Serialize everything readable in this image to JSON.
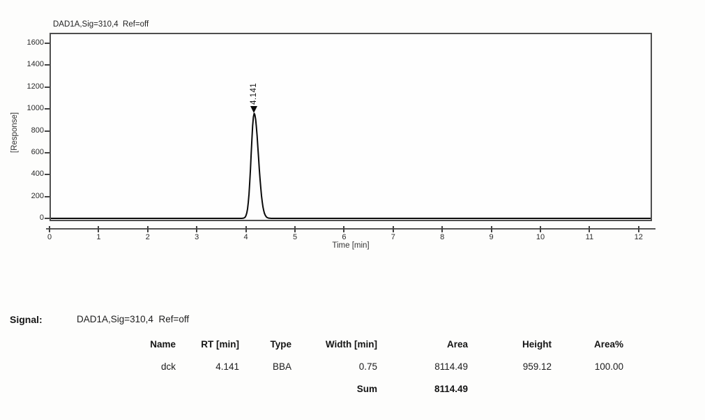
{
  "chart_data": {
    "type": "line",
    "title": "DAD1A,Sig=310,4  Ref=off",
    "xlabel": "Time [min]",
    "ylabel": "[Response]",
    "xlim": [
      0,
      12.27
    ],
    "ylim": [
      -30,
      1700
    ],
    "xticks": [
      0,
      1,
      2,
      3,
      4,
      5,
      6,
      7,
      8,
      9,
      10,
      11,
      12
    ],
    "yticks": [
      0,
      200,
      400,
      600,
      800,
      1000,
      1200,
      1400,
      1600
    ],
    "grid": false,
    "legend": false,
    "series": [
      {
        "name": "DAD1A,Sig=310,4 Ref=off",
        "baseline": 0,
        "peaks": [
          {
            "rt_min": 4.141,
            "height": 959.12,
            "label": "4.141",
            "sigma_left_min": 0.062,
            "sigma_right_min": 0.085
          }
        ]
      }
    ]
  },
  "signal": {
    "label": "Signal:",
    "value": "DAD1A,Sig=310,4  Ref=off"
  },
  "peak_table": {
    "headers": [
      "Name",
      "RT [min]",
      "Type",
      "Width [min]",
      "Area",
      "Height",
      "Area%"
    ],
    "rows": [
      {
        "name": "dck",
        "rt": "4.141",
        "type": "BBA",
        "width": "0.75",
        "area": "8114.49",
        "height": "959.12",
        "area_pct": "100.00"
      }
    ],
    "sum": {
      "label": "Sum",
      "area": "8114.49"
    }
  }
}
